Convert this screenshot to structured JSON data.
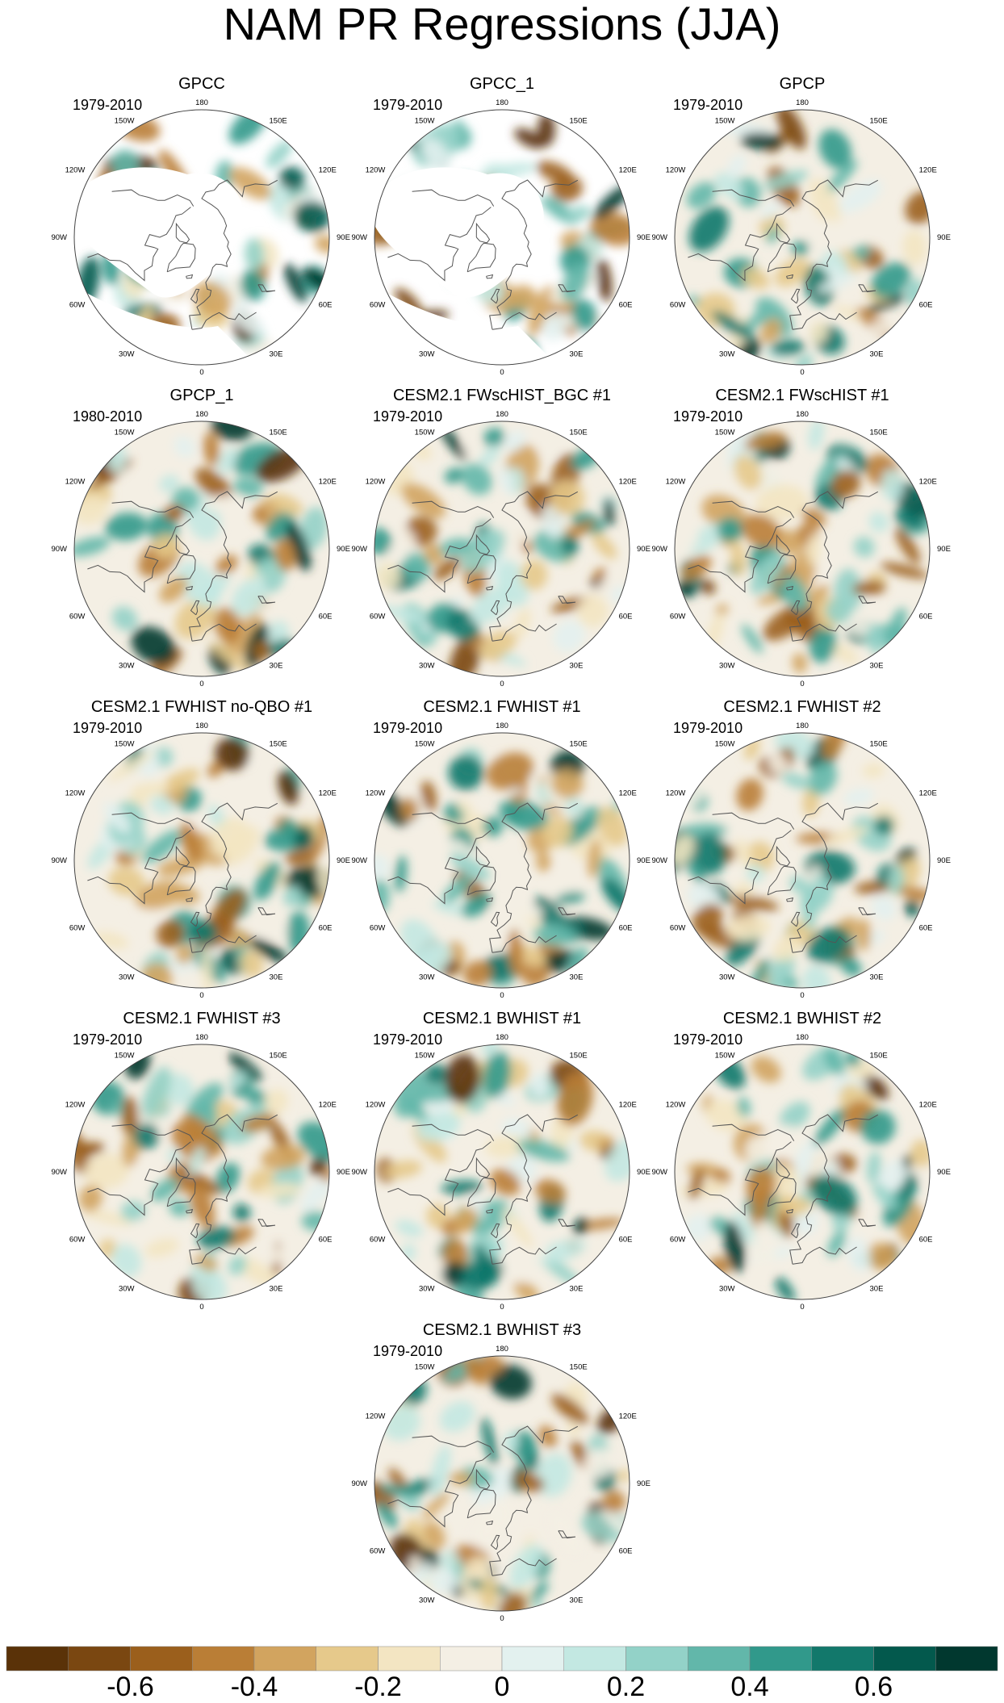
{
  "title": "NAM PR Regressions (JJA)",
  "lon_labels": [
    "180",
    "150E",
    "120E",
    "90E",
    "60E",
    "30E",
    "0",
    "30W",
    "60W",
    "90W",
    "120W",
    "150W"
  ],
  "panels": [
    {
      "name": "GPCC",
      "period": "1979-2010",
      "missing_arctic": true,
      "pattern": "obs-sparse",
      "seed": 11
    },
    {
      "name": "GPCC_1",
      "period": "1979-2010",
      "missing_arctic": true,
      "pattern": "obs-sparse",
      "seed": 12
    },
    {
      "name": "GPCP",
      "period": "1979-2010",
      "missing_arctic": false,
      "pattern": "obs",
      "seed": 13
    },
    {
      "name": "GPCP_1",
      "period": "1980-2010",
      "missing_arctic": false,
      "pattern": "obs",
      "seed": 14
    },
    {
      "name": "CESM2.1 FWscHIST_BGC #1",
      "period": "1979-2010",
      "missing_arctic": false,
      "pattern": "model",
      "seed": 21
    },
    {
      "name": "CESM2.1 FWscHIST #1",
      "period": "1979-2010",
      "missing_arctic": false,
      "pattern": "model",
      "seed": 22
    },
    {
      "name": "CESM2.1 FWHIST no-QBO #1",
      "period": "1979-2010",
      "missing_arctic": false,
      "pattern": "model",
      "seed": 23
    },
    {
      "name": "CESM2.1 FWHIST #1",
      "period": "1979-2010",
      "missing_arctic": false,
      "pattern": "model",
      "seed": 24
    },
    {
      "name": "CESM2.1 FWHIST #2",
      "period": "1979-2010",
      "missing_arctic": false,
      "pattern": "model",
      "seed": 25
    },
    {
      "name": "CESM2.1 FWHIST #3",
      "period": "1979-2010",
      "missing_arctic": false,
      "pattern": "model",
      "seed": 26
    },
    {
      "name": "CESM2.1 BWHIST #1",
      "period": "1979-2010",
      "missing_arctic": false,
      "pattern": "model",
      "seed": 27
    },
    {
      "name": "CESM2.1 BWHIST #2",
      "period": "1979-2010",
      "missing_arctic": false,
      "pattern": "model",
      "seed": 28
    },
    {
      "name": "CESM2.1 BWHIST #3",
      "period": "1979-2010",
      "missing_arctic": false,
      "pattern": "model",
      "seed": 29
    }
  ],
  "colorbar": {
    "colors": [
      "#5a3208",
      "#7a4711",
      "#9b5f1c",
      "#ba7e36",
      "#d2a45f",
      "#e6c98b",
      "#f3e5c2",
      "#f4efe4",
      "#e3f1ef",
      "#c3e8e2",
      "#93d2c8",
      "#62b7aa",
      "#31998b",
      "#12786b",
      "#03594d",
      "#01382f"
    ],
    "tick_labels": [
      "-0.6",
      "-0.4",
      "-0.2",
      "0",
      "0.2",
      "0.4",
      "0.6"
    ],
    "tick_values": [
      -0.6,
      -0.4,
      -0.2,
      0,
      0.2,
      0.4,
      0.6
    ],
    "range": [
      -0.8,
      0.8
    ]
  }
}
